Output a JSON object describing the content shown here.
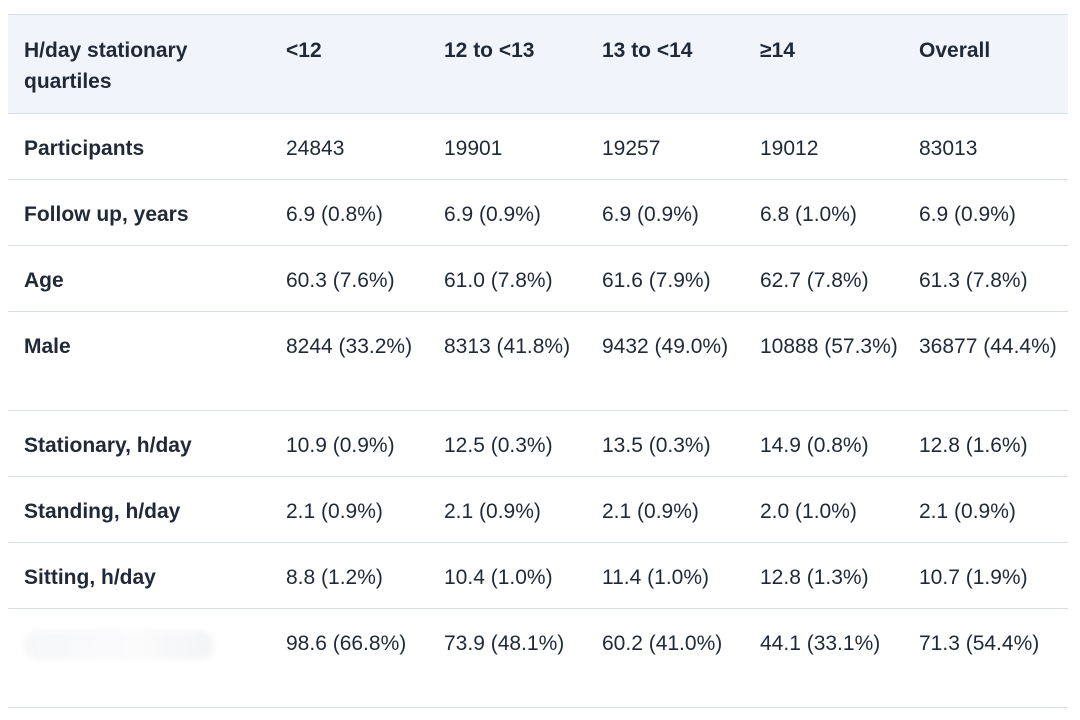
{
  "table": {
    "header": {
      "label": "H/day stationary quartiles",
      "columns": [
        "<12",
        "12 to <13",
        "13 to <14",
        "≥14",
        "Overall"
      ]
    },
    "rows": [
      {
        "label": "Participants",
        "values": [
          "24843",
          "19901",
          "19257",
          "19012",
          "83013"
        ]
      },
      {
        "label": "Follow up, years",
        "values": [
          "6.9 (0.8%)",
          "6.9 (0.9%)",
          "6.9 (0.9%)",
          "6.8 (1.0%)",
          "6.9 (0.9%)"
        ]
      },
      {
        "label": "Age",
        "values": [
          "60.3 (7.6%)",
          "61.0 (7.8%)",
          "61.6 (7.9%)",
          "62.7 (7.8%)",
          "61.3 (7.8%)"
        ]
      },
      {
        "label": "Male",
        "values": [
          "8244 (33.2%)",
          "8313 (41.8%)",
          "9432 (49.0%)",
          "10888 (57.3%)",
          "36877 (44.4%)"
        ]
      },
      {
        "label": "Stationary, h/day",
        "values": [
          "10.9 (0.9%)",
          "12.5 (0.3%)",
          "13.5 (0.3%)",
          "14.9 (0.8%)",
          "12.8 (1.6%)"
        ]
      },
      {
        "label": "Standing, h/day",
        "values": [
          "2.1 (0.9%)",
          "2.1 (0.9%)",
          "2.1 (0.9%)",
          "2.0 (1.0%)",
          "2.1 (0.9%)"
        ]
      },
      {
        "label": "Sitting, h/day",
        "values": [
          "8.8 (1.2%)",
          "10.4 (1.0%)",
          "11.4 (1.0%)",
          "12.8 (1.3%)",
          "10.7 (1.9%)"
        ]
      },
      {
        "label": "",
        "values": [
          "98.6 (66.8%)",
          "73.9 (48.1%)",
          "60.2 (41.0%)",
          "44.1 (33.1%)",
          "71.3 (54.4%)"
        ]
      }
    ]
  }
}
